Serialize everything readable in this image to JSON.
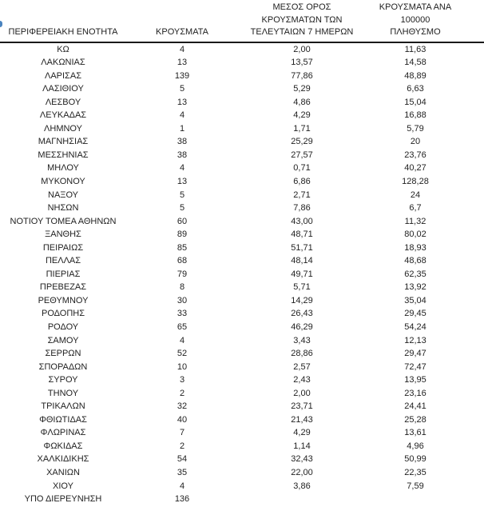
{
  "page": {
    "background_color": "#ffffff",
    "text_color": "#1f1f1f",
    "header_rule_color": "#1a1a1a",
    "cropped_blue_mark_color": "#4a84bf"
  },
  "table": {
    "columns": [
      {
        "label": "ΠΕΡΙΦΕΡΕΙΑΚΗ ΕΝΟΤΗΤΑ"
      },
      {
        "label": "ΚΡΟΥΣΜΑΤΑ"
      },
      {
        "label": "ΜΕΣΟΣ ΟΡΟΣ\nΚΡΟΥΣΜΑΤΩΝ ΤΩΝ\nΤΕΛΕΥΤΑΙΩΝ 7 ΗΜΕΡΩΝ"
      },
      {
        "label": "ΚΡΟΥΣΜΑΤΑ ΑΝΑ 100000\nΠΛΗΘΥΣΜΟ"
      }
    ],
    "rows": [
      [
        "ΚΩ",
        "4",
        "2,00",
        "11,63"
      ],
      [
        "ΛΑΚΩΝΙΑΣ",
        "13",
        "13,57",
        "14,58"
      ],
      [
        "ΛΑΡΙΣΑΣ",
        "139",
        "77,86",
        "48,89"
      ],
      [
        "ΛΑΣΙΘΙΟΥ",
        "5",
        "5,29",
        "6,63"
      ],
      [
        "ΛΕΣΒΟΥ",
        "13",
        "4,86",
        "15,04"
      ],
      [
        "ΛΕΥΚΑΔΑΣ",
        "4",
        "4,29",
        "16,88"
      ],
      [
        "ΛΗΜΝΟΥ",
        "1",
        "1,71",
        "5,79"
      ],
      [
        "ΜΑΓΝΗΣΙΑΣ",
        "38",
        "25,29",
        "20"
      ],
      [
        "ΜΕΣΣΗΝΙΑΣ",
        "38",
        "27,57",
        "23,76"
      ],
      [
        "ΜΗΛΟΥ",
        "4",
        "0,71",
        "40,27"
      ],
      [
        "ΜΥΚΟΝΟΥ",
        "13",
        "6,86",
        "128,28"
      ],
      [
        "ΝΑΞΟΥ",
        "5",
        "2,71",
        "24"
      ],
      [
        "ΝΗΣΩΝ",
        "5",
        "7,86",
        "6,7"
      ],
      [
        "ΝΟΤΙΟΥ ΤΟΜΕΑ ΑΘΗΝΩΝ",
        "60",
        "43,00",
        "11,32"
      ],
      [
        "ΞΑΝΘΗΣ",
        "89",
        "48,71",
        "80,02"
      ],
      [
        "ΠΕΙΡΑΙΩΣ",
        "85",
        "51,71",
        "18,93"
      ],
      [
        "ΠΕΛΛΑΣ",
        "68",
        "48,14",
        "48,68"
      ],
      [
        "ΠΙΕΡΙΑΣ",
        "79",
        "49,71",
        "62,35"
      ],
      [
        "ΠΡΕΒΕΖΑΣ",
        "8",
        "5,71",
        "13,92"
      ],
      [
        "ΡΕΘΥΜΝΟΥ",
        "30",
        "14,29",
        "35,04"
      ],
      [
        "ΡΟΔΟΠΗΣ",
        "33",
        "26,43",
        "29,45"
      ],
      [
        "ΡΟΔΟΥ",
        "65",
        "46,29",
        "54,24"
      ],
      [
        "ΣΑΜΟΥ",
        "4",
        "3,43",
        "12,13"
      ],
      [
        "ΣΕΡΡΩΝ",
        "52",
        "28,86",
        "29,47"
      ],
      [
        "ΣΠΟΡΑΔΩΝ",
        "10",
        "2,57",
        "72,47"
      ],
      [
        "ΣΥΡΟΥ",
        "3",
        "2,43",
        "13,95"
      ],
      [
        "ΤΗΝΟΥ",
        "2",
        "2,00",
        "23,16"
      ],
      [
        "ΤΡΙΚΑΛΩΝ",
        "32",
        "23,71",
        "24,41"
      ],
      [
        "ΦΘΙΩΤΙΔΑΣ",
        "40",
        "21,43",
        "25,28"
      ],
      [
        "ΦΛΩΡΙΝΑΣ",
        "7",
        "4,29",
        "13,61"
      ],
      [
        "ΦΩΚΙΔΑΣ",
        "2",
        "1,14",
        "4,96"
      ],
      [
        "ΧΑΛΚΙΔΙΚΗΣ",
        "54",
        "32,43",
        "50,99"
      ],
      [
        "ΧΑΝΙΩΝ",
        "35",
        "22,00",
        "22,35"
      ],
      [
        "ΧΙΟΥ",
        "4",
        "3,86",
        "7,59"
      ],
      [
        "ΥΠΟ ΔΙΕΡΕΥΝΗΣΗ",
        "136",
        "",
        ""
      ]
    ]
  }
}
